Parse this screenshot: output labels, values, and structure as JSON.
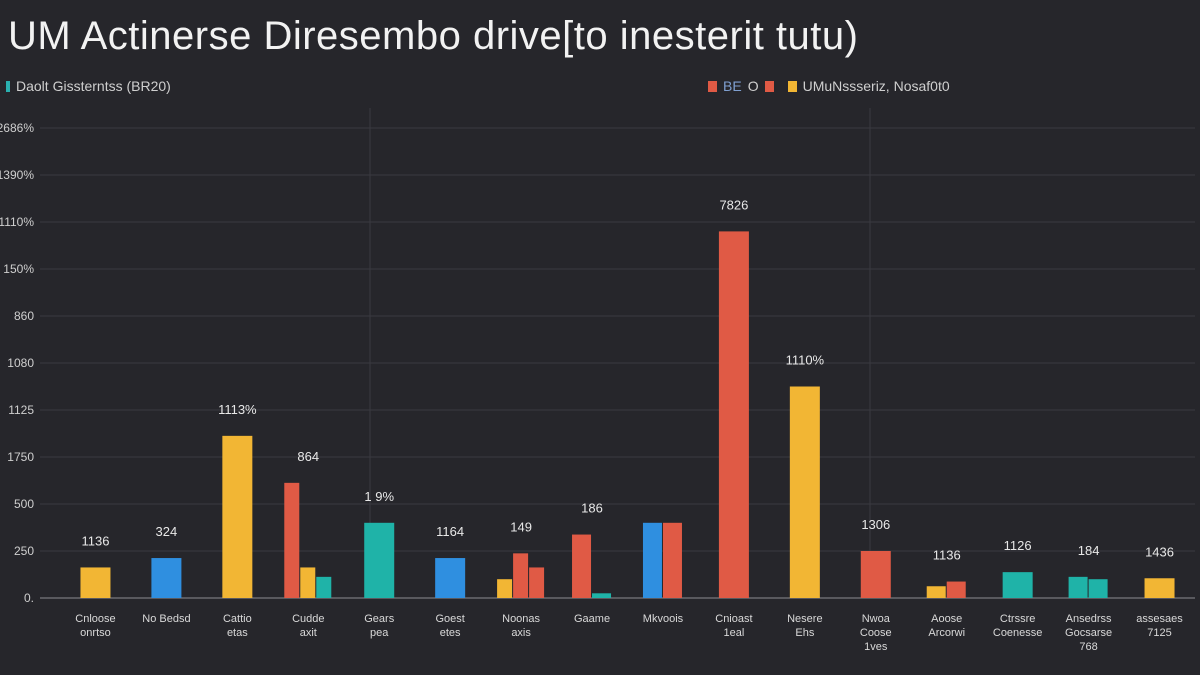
{
  "title": "UM Actinerse Diresembo drive[to inesterit tutu)",
  "legend_left": {
    "label": "Daolt Gissterntss (BR20)",
    "colors": [
      "#2ab0b0",
      "#3a7fd0"
    ]
  },
  "legend_right": {
    "items": [
      {
        "label": "",
        "color": "#e05a45"
      },
      {
        "label": "BE",
        "color": ""
      },
      {
        "label": "O",
        "color": "#e05a45"
      },
      {
        "label": "UMuNssseriz, Nosaf0t0",
        "color": "#f2b634"
      }
    ]
  },
  "colors": {
    "red": "#e05a45",
    "yellow": "#f2b634",
    "teal": "#1fb3a8",
    "blue": "#2f8fe0",
    "grid": "#3a3a40",
    "axis": "#6a6a70"
  },
  "chart_data": {
    "type": "bar",
    "title": "UM Actinerse Diresembo drive[to inesterit tutu)",
    "xlabel": "",
    "ylabel": "",
    "y_tick_labels": [
      "0.",
      "250",
      "500",
      "1750",
      "1125",
      "1080",
      "860",
      "150%",
      "1110%",
      "1390%",
      "2686%"
    ],
    "ylim": [
      0,
      10
    ],
    "grid": true,
    "legend": "top",
    "categories": [
      {
        "label": [
          "Cnloose",
          "onrtso"
        ],
        "bars": [
          {
            "color": "yellow",
            "value": 0.65
          }
        ],
        "data_label": "1136",
        "label_color": "#e8e8e8"
      },
      {
        "label": [
          "No Bedsd"
        ],
        "bars": [
          {
            "color": "blue",
            "value": 0.85
          }
        ],
        "data_label": "324",
        "label_color": "#e05a45"
      },
      {
        "label": [
          "Cattio",
          "etas"
        ],
        "bars": [
          {
            "color": "yellow",
            "value": 3.45
          }
        ],
        "data_label": "1113%",
        "label_color": "#e8e8e8"
      },
      {
        "label": [
          "Cudde",
          "axit"
        ],
        "bars": [
          {
            "color": "red",
            "value": 2.45
          },
          {
            "color": "yellow",
            "value": 0.65
          },
          {
            "color": "teal",
            "value": 0.45
          }
        ],
        "data_label": "864",
        "label_color": "#e05a45"
      },
      {
        "label": [
          "Gears",
          "pea"
        ],
        "bars": [
          {
            "color": "teal",
            "value": 1.6
          }
        ],
        "data_label": "1 9%",
        "label_color": "#e8e8e8"
      },
      {
        "label": [
          "Goest",
          "etes"
        ],
        "bars": [
          {
            "color": "blue",
            "value": 0.85
          }
        ],
        "data_label": "1164",
        "label_color": "#e05a45"
      },
      {
        "label": [
          "Noonas",
          "axis"
        ],
        "bars": [
          {
            "color": "yellow",
            "value": 0.4
          },
          {
            "color": "red",
            "value": 0.95
          },
          {
            "color": "red",
            "value": 0.65
          }
        ],
        "data_label": "149",
        "label_color": "#e8e8e8"
      },
      {
        "label": [
          "Gaame"
        ],
        "bars": [
          {
            "color": "red",
            "value": 1.35
          },
          {
            "color": "teal",
            "value": 0.1
          }
        ],
        "data_label": "186",
        "label_color": "#e8e8e8"
      },
      {
        "label": [
          "Mkvoois"
        ],
        "bars": [
          {
            "color": "blue",
            "value": 1.6
          },
          {
            "color": "red",
            "value": 1.6
          }
        ],
        "data_label": "",
        "label_color": "#e8e8e8"
      },
      {
        "label": [
          "Cnioast",
          "1eal"
        ],
        "bars": [
          {
            "color": "red",
            "value": 7.8
          }
        ],
        "data_label": "7826",
        "label_color": "#e8e8e8"
      },
      {
        "label": [
          "Nesere",
          "Ehs"
        ],
        "bars": [
          {
            "color": "yellow",
            "value": 4.5
          }
        ],
        "data_label": "1110%",
        "label_color": "#e8e8e8"
      },
      {
        "label": [
          "Nwoa",
          "Coose",
          "1ves"
        ],
        "bars": [
          {
            "color": "red",
            "value": 1.0
          }
        ],
        "data_label": "1306",
        "label_color": "#e05a45"
      },
      {
        "label": [
          "Aoose",
          "Arcorwi"
        ],
        "bars": [
          {
            "color": "yellow",
            "value": 0.25
          },
          {
            "color": "red",
            "value": 0.35
          }
        ],
        "data_label": "1136",
        "label_color": "#e8e8e8"
      },
      {
        "label": [
          "Ctrssre",
          "Coenesse"
        ],
        "bars": [
          {
            "color": "teal",
            "value": 0.55
          }
        ],
        "data_label": "1126",
        "label_color": "#e8e8e8"
      },
      {
        "label": [
          "Ansedrss",
          "Gocsarse",
          "768"
        ],
        "bars": [
          {
            "color": "teal",
            "value": 0.45
          },
          {
            "color": "teal",
            "value": 0.4
          }
        ],
        "data_label": "184",
        "label_color": "#f2b634"
      },
      {
        "label": [
          "assesaes",
          "7125"
        ],
        "bars": [
          {
            "color": "yellow",
            "value": 0.42
          }
        ],
        "data_label": "1436",
        "label_color": "#e8e8e8"
      }
    ]
  }
}
